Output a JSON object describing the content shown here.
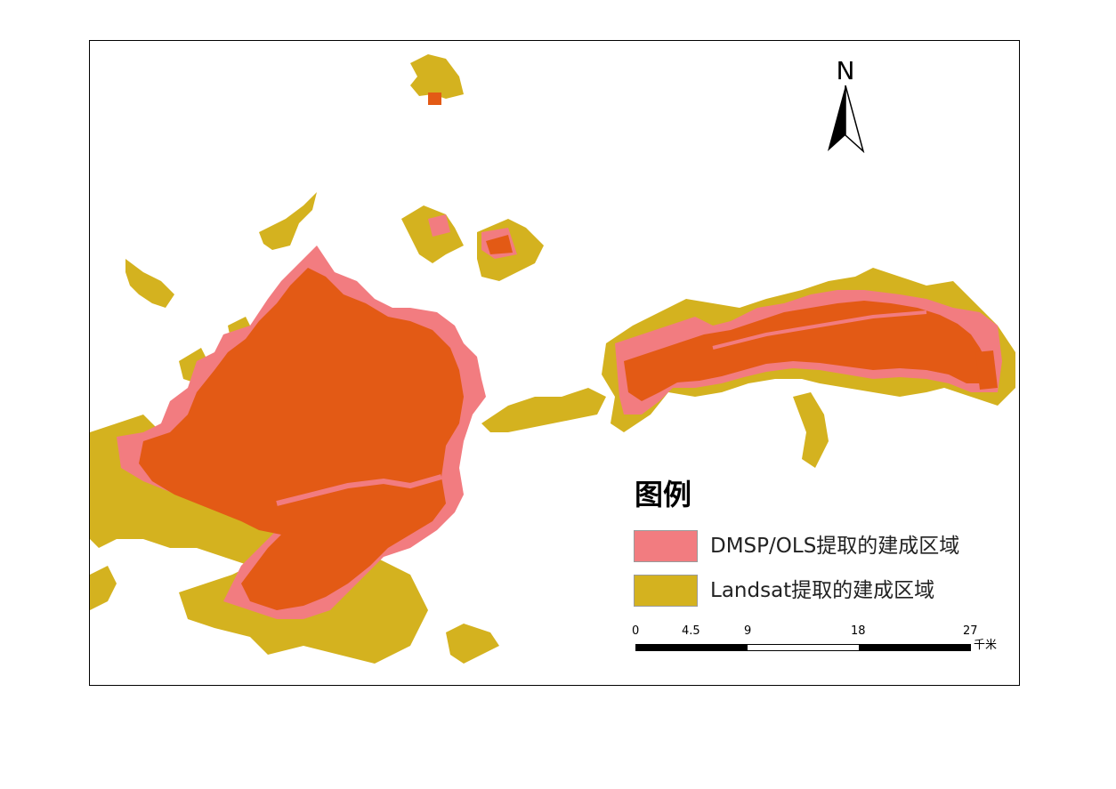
{
  "map": {
    "colors": {
      "landsat": "#d4b21f",
      "dmsp": "#f27c80",
      "overlap": "#e35a15",
      "frame": "#000000",
      "background": "#ffffff"
    },
    "north_arrow": {
      "label": "N",
      "icon": "north-arrow-icon"
    },
    "legend": {
      "title": "图例",
      "items": [
        {
          "label": "DMSP/OLS提取的建成区域",
          "color": "#f27c80"
        },
        {
          "label": "Landsat提取的建成区域",
          "color": "#d4b21f"
        }
      ]
    },
    "scale_bar": {
      "ticks": [
        "0",
        "4.5",
        "9",
        "18",
        "27"
      ],
      "unit": "千米"
    }
  }
}
